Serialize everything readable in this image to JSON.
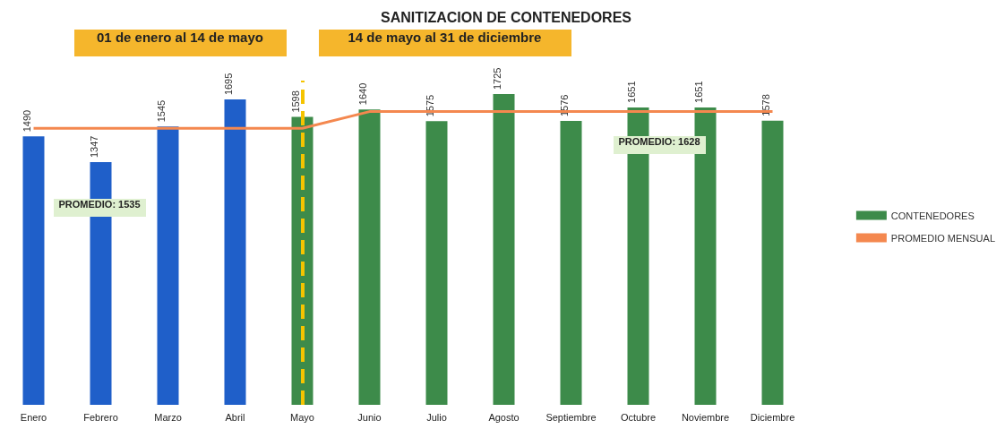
{
  "chart_data": {
    "type": "bar",
    "title": "SANITIZACION DE CONTENEDORES",
    "categories": [
      "Enero",
      "Febrero",
      "Marzo",
      "Abril",
      "Mayo",
      "Junio",
      "Julio",
      "Agosto",
      "Septiembre",
      "Octubre",
      "Noviembre",
      "Diciembre"
    ],
    "series": [
      {
        "name": "CONTENEDORES",
        "color": "#3d8b4a",
        "colors": [
          "#1f5fc9",
          "#1f5fc9",
          "#1f5fc9",
          "#1f5fc9",
          "#3d8b4a",
          "#3d8b4a",
          "#3d8b4a",
          "#3d8b4a",
          "#3d8b4a",
          "#3d8b4a",
          "#3d8b4a",
          "#3d8b4a"
        ],
        "values": [
          1490,
          1347,
          1545,
          1695,
          1598,
          1640,
          1575,
          1725,
          1576,
          1651,
          1651,
          1578
        ],
        "value_labels": [
          "1490",
          "1347",
          "1545",
          "1695",
          "1598",
          "1640",
          "1575",
          "1725",
          "1576",
          "1651",
          "1651",
          "1578"
        ]
      },
      {
        "name": "PROMEDIO MENSUAL",
        "type": "line",
        "color": "#f4884f",
        "values": [
          1535,
          1535,
          1535,
          1535,
          1535,
          1628,
          1628,
          1628,
          1628,
          1628,
          1628,
          1628
        ]
      }
    ],
    "marker": "none",
    "legend": "right",
    "grid": false,
    "ref_lines": [
      {
        "axis": "x",
        "value": "Mayo",
        "color": "#f5c400",
        "line_style": "dashed"
      }
    ],
    "annotations": [
      "01 de enero al 14 de mayo",
      "14 de mayo al 31 de diciembre",
      "PROMEDIO: 1535",
      "PROMEDIO: 1628"
    ]
  }
}
